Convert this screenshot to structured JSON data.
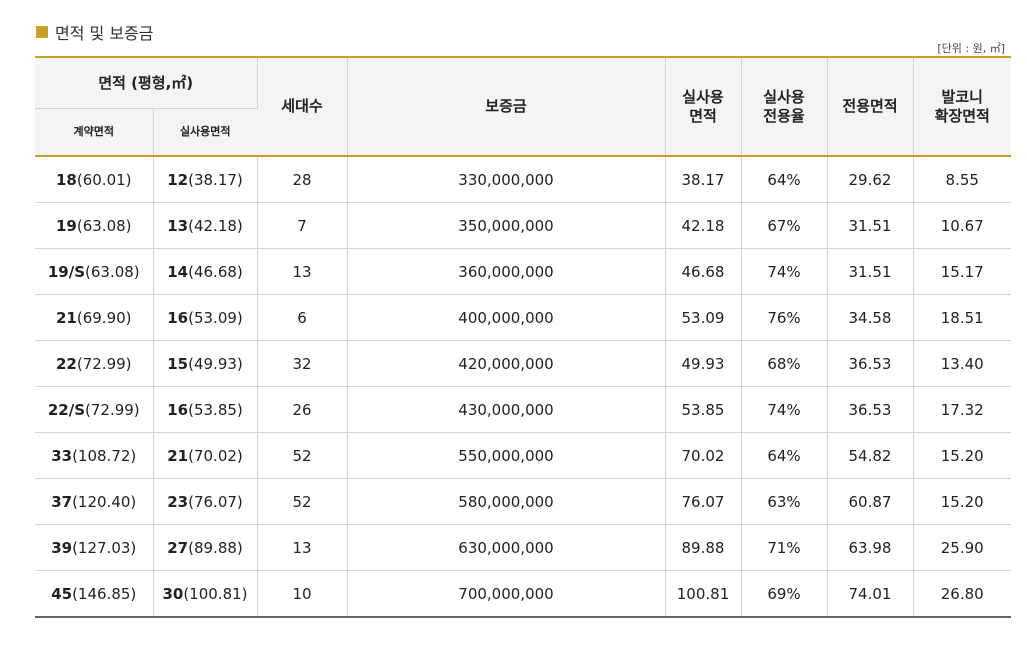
{
  "section_title": "면적 및 보증금",
  "unit_note": "[단위 : 원, ㎡]",
  "colors": {
    "accent": "#c6a227",
    "header_bg": "#f4f4f4",
    "border": "#d4d4d4"
  },
  "columns": {
    "area_group": "면적 (평형,㎡)",
    "contract_area": "계약면적",
    "actual_use_area": "실사용면적",
    "households": "세대수",
    "deposit": "보증금",
    "actual_area_l1": "실사용",
    "actual_area_l2": "면적",
    "ratio_l1": "실사용",
    "ratio_l2": "전용율",
    "exclusive_area": "전용면적",
    "balcony_l1": "발코니",
    "balcony_l2": "확장면적"
  },
  "rows": [
    {
      "contract_py": "18",
      "contract_m2": "(60.01)",
      "use_py": "12",
      "use_m2": "(38.17)",
      "households": "28",
      "deposit": "330,000,000",
      "actual_area": "38.17",
      "ratio": "64%",
      "exclusive": "29.62",
      "balcony": "8.55"
    },
    {
      "contract_py": "19",
      "contract_m2": "(63.08)",
      "use_py": "13",
      "use_m2": "(42.18)",
      "households": "7",
      "deposit": "350,000,000",
      "actual_area": "42.18",
      "ratio": "67%",
      "exclusive": "31.51",
      "balcony": "10.67"
    },
    {
      "contract_py": "19/S",
      "contract_m2": "(63.08)",
      "use_py": "14",
      "use_m2": "(46.68)",
      "households": "13",
      "deposit": "360,000,000",
      "actual_area": "46.68",
      "ratio": "74%",
      "exclusive": "31.51",
      "balcony": "15.17"
    },
    {
      "contract_py": "21",
      "contract_m2": "(69.90)",
      "use_py": "16",
      "use_m2": "(53.09)",
      "households": "6",
      "deposit": "400,000,000",
      "actual_area": "53.09",
      "ratio": "76%",
      "exclusive": "34.58",
      "balcony": "18.51"
    },
    {
      "contract_py": "22",
      "contract_m2": "(72.99)",
      "use_py": "15",
      "use_m2": "(49.93)",
      "households": "32",
      "deposit": "420,000,000",
      "actual_area": "49.93",
      "ratio": "68%",
      "exclusive": "36.53",
      "balcony": "13.40"
    },
    {
      "contract_py": "22/S",
      "contract_m2": "(72.99)",
      "use_py": "16",
      "use_m2": "(53.85)",
      "households": "26",
      "deposit": "430,000,000",
      "actual_area": "53.85",
      "ratio": "74%",
      "exclusive": "36.53",
      "balcony": "17.32"
    },
    {
      "contract_py": "33",
      "contract_m2": "(108.72)",
      "use_py": "21",
      "use_m2": "(70.02)",
      "households": "52",
      "deposit": "550,000,000",
      "actual_area": "70.02",
      "ratio": "64%",
      "exclusive": "54.82",
      "balcony": "15.20"
    },
    {
      "contract_py": "37",
      "contract_m2": "(120.40)",
      "use_py": "23",
      "use_m2": "(76.07)",
      "households": "52",
      "deposit": "580,000,000",
      "actual_area": "76.07",
      "ratio": "63%",
      "exclusive": "60.87",
      "balcony": "15.20"
    },
    {
      "contract_py": "39",
      "contract_m2": "(127.03)",
      "use_py": "27",
      "use_m2": "(89.88)",
      "households": "13",
      "deposit": "630,000,000",
      "actual_area": "89.88",
      "ratio": "71%",
      "exclusive": "63.98",
      "balcony": "25.90"
    },
    {
      "contract_py": "45",
      "contract_m2": "(146.85)",
      "use_py": "30",
      "use_m2": "(100.81)",
      "households": "10",
      "deposit": "700,000,000",
      "actual_area": "100.81",
      "ratio": "69%",
      "exclusive": "74.01",
      "balcony": "26.80"
    }
  ]
}
